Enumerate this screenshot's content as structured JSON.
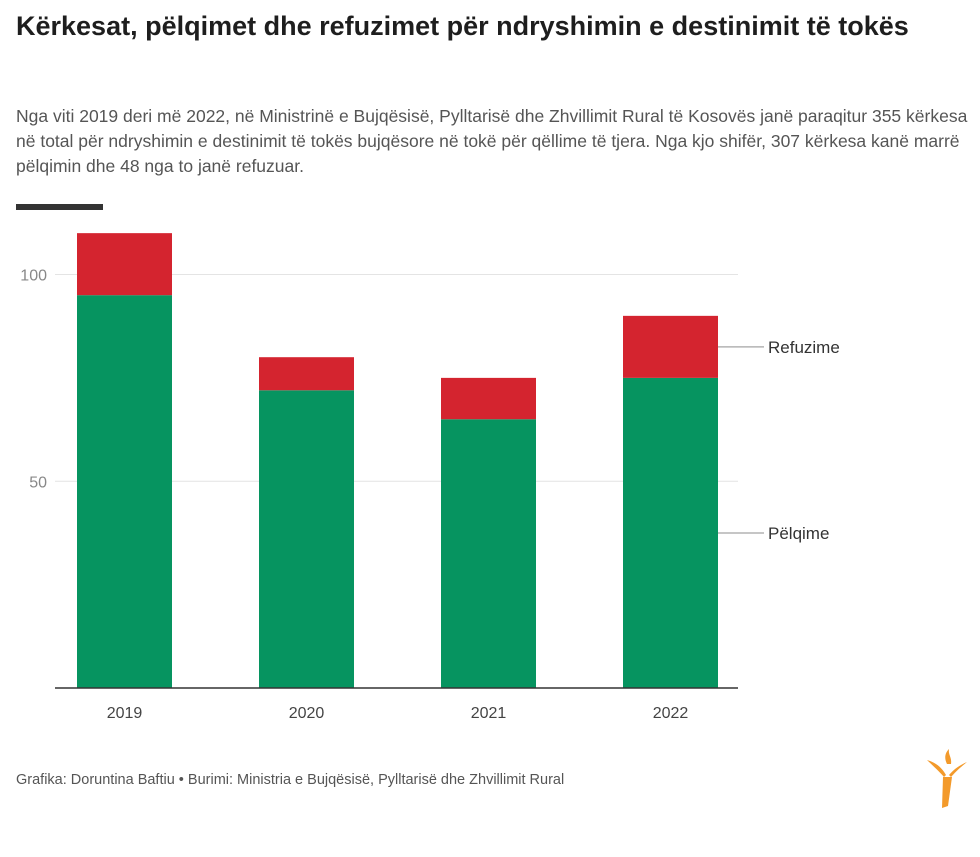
{
  "header": {
    "title": "Kërkesat, pëlqimet dhe refuzimet për ndryshimin e destinimit të tokës",
    "subtitle": "Nga viti 2019 deri më 2022, në Ministrinë e Bujqësisë, Pylltarisë dhe Zhvillimit Rural të Kosovës janë paraqitur 355 kërkesa në total për ndryshimin e destinimit të tokës bujqësore në tokë për qëllime të tjera. Nga kjo shifër, 307 kërkesa kanë marrë pëlqimin dhe 48 nga to janë refuzuar."
  },
  "colors": {
    "approved": "#069460",
    "rejected": "#d4242f",
    "grid": "#e4e4e4",
    "legend_line": "#b3b3b3",
    "logo": "#f39a2b"
  },
  "chart_data": {
    "type": "bar",
    "stacked": true,
    "categories": [
      "2019",
      "2020",
      "2021",
      "2022"
    ],
    "series": [
      {
        "name": "Pëlqime",
        "values": [
          95,
          72,
          65,
          75
        ]
      },
      {
        "name": "Refuzime",
        "values": [
          15,
          8,
          10,
          15
        ]
      }
    ],
    "yticks": [
      50,
      100
    ],
    "ylim": [
      0,
      110
    ],
    "grid": true,
    "xlabel": "",
    "ylabel": "",
    "legend": "direct labels right of last bar"
  },
  "footer": {
    "credit": "Grafika: Doruntina Baftiu • Burimi: Ministria e Bujqësisë, Pylltarisë dhe Zhvillimit Rural"
  },
  "logo": {
    "icon": "rfe-torch-logo-icon"
  }
}
